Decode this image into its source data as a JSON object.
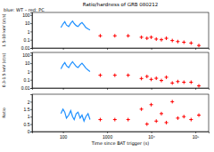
{
  "chart_data": [
    {
      "type": "scatter",
      "title": "Ratio/hardness of GRB 080212",
      "subtitle": "blue: WT – red: PC",
      "y_label": "1.5-10 keV (ct/s)",
      "log": true,
      "tick_labels": "y",
      "xlim": [
        20,
        200000
      ],
      "ylim": [
        0.01,
        200
      ],
      "xticks": [
        100,
        1000,
        {
          "value": 10000,
          "label": "10⁴"
        },
        {
          "value": 100000,
          "label": "10⁵"
        }
      ],
      "yticks": [
        0.01,
        0.1,
        1,
        10,
        100
      ],
      "series": [
        {
          "type": "line",
          "color": "#1e90ff",
          "x": [
            90,
            100,
            110,
            120,
            135,
            150,
            165,
            180,
            200,
            220,
            245,
            270,
            300,
            330,
            370,
            410
          ],
          "values": [
            3,
            8,
            15,
            6,
            4,
            10,
            18,
            9,
            5,
            4,
            8,
            12,
            6,
            3,
            2,
            1.5
          ]
        },
        {
          "type": "scatter",
          "marker": "cross",
          "color": "#ff0000",
          "x": [
            700,
            1500,
            3000,
            6000,
            8000,
            10000,
            13000,
            17000,
            22000,
            30000,
            40000,
            55000,
            80000,
            120000
          ],
          "values": [
            0.3,
            0.3,
            0.3,
            0.2,
            0.15,
            0.2,
            0.12,
            0.1,
            0.15,
            0.08,
            0.06,
            0.05,
            0.04,
            0.02
          ]
        }
      ]
    },
    {
      "type": "scatter",
      "y_label": "0.3-1.5 keV (ct/s)",
      "log": true,
      "tick_labels": "y",
      "xlim": [
        20,
        200000
      ],
      "ylim": [
        0.01,
        200
      ],
      "xticks": [
        100,
        1000,
        {
          "value": 10000,
          "label": "10⁴"
        },
        {
          "value": 100000,
          "label": "10⁵"
        }
      ],
      "yticks": [
        0.01,
        0.1,
        1,
        10,
        100
      ],
      "series": [
        {
          "type": "line",
          "color": "#1e90ff",
          "x": [
            90,
            100,
            110,
            120,
            135,
            150,
            165,
            180,
            200,
            220,
            245,
            270,
            300,
            330,
            370,
            410
          ],
          "values": [
            2,
            6,
            12,
            5,
            3,
            8,
            15,
            8,
            4,
            3,
            6,
            10,
            5,
            2.5,
            1.5,
            1
          ]
        },
        {
          "type": "scatter",
          "marker": "cross",
          "color": "#ff0000",
          "x": [
            700,
            1500,
            3000,
            6000,
            8000,
            10000,
            13000,
            17000,
            22000,
            30000,
            40000,
            55000,
            80000,
            120000
          ],
          "values": [
            0.35,
            0.35,
            0.35,
            0.14,
            0.25,
            0.11,
            0.15,
            0.08,
            0.2,
            0.04,
            0.06,
            0.05,
            0.05,
            0.018
          ]
        }
      ]
    },
    {
      "type": "scatter",
      "y_label": "Ratio",
      "x_label": "Time since BAT trigger (s)",
      "log": "x",
      "xlim": [
        20,
        200000
      ],
      "ylim": [
        0,
        2.5
      ],
      "xticks": [
        100,
        1000,
        {
          "value": 10000,
          "label": "10⁴"
        },
        {
          "value": 100000,
          "label": "10⁵"
        }
      ],
      "yticks": [
        0,
        0.5,
        1,
        1.5,
        2
      ],
      "series": [
        {
          "type": "line",
          "color": "#1e90ff",
          "x": [
            90,
            100,
            110,
            120,
            135,
            150,
            165,
            180,
            200,
            220,
            245,
            270,
            300,
            330,
            370,
            410
          ],
          "values": [
            1.2,
            1.5,
            1.3,
            0.9,
            1.1,
            1.4,
            1.0,
            0.8,
            1.2,
            1.3,
            0.9,
            1.1,
            0.7,
            1.0,
            1.2,
            0.8
          ]
        },
        {
          "type": "scatter",
          "marker": "cross",
          "color": "#ff0000",
          "x": [
            700,
            1500,
            3000,
            6000,
            8000,
            10000,
            13000,
            17000,
            22000,
            30000,
            40000,
            55000,
            80000,
            120000
          ],
          "values": [
            0.8,
            0.8,
            0.8,
            1.5,
            0.5,
            1.8,
            0.7,
            1.2,
            0.6,
            2.0,
            0.9,
            1.0,
            0.8,
            1.1
          ]
        }
      ]
    }
  ]
}
